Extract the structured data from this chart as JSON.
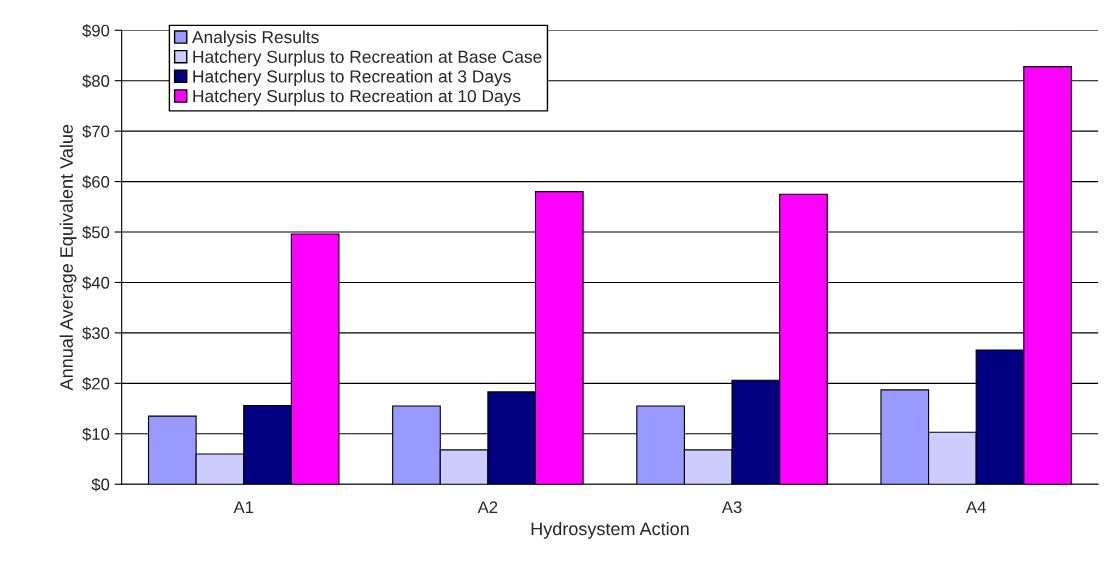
{
  "chart_data": {
    "type": "bar",
    "xlabel": "Hydrosystem Action",
    "ylabel": "Annual Average Equivalent Value",
    "categories": [
      "A1",
      "A2",
      "A3",
      "A4"
    ],
    "series": [
      {
        "name": "Analysis Results",
        "color": "#9999ff",
        "values": [
          13.5,
          15.5,
          15.5,
          18.7
        ]
      },
      {
        "name": "Hatchery Surplus to Recreation at Base Case",
        "color": "#ccccff",
        "values": [
          6,
          6.8,
          6.8,
          10.3
        ]
      },
      {
        "name": "Hatchery Surplus to Recreation at 3 Days",
        "color": "#000080",
        "values": [
          15.6,
          18.3,
          20.6,
          26.6
        ]
      },
      {
        "name": "Hatchery Surplus to Recreation at 10 Days",
        "color": "#ff00ff",
        "values": [
          49.6,
          58,
          57.5,
          82.8
        ]
      }
    ],
    "ylim": [
      0,
      90
    ],
    "yticks": [
      {
        "value": 0,
        "label": "$0"
      },
      {
        "value": 10,
        "label": "$10"
      },
      {
        "value": 20,
        "label": "$20"
      },
      {
        "value": 30,
        "label": "$30"
      },
      {
        "value": 40,
        "label": "$40"
      },
      {
        "value": 50,
        "label": "$50"
      },
      {
        "value": 60,
        "label": "$60"
      },
      {
        "value": 70,
        "label": "$70"
      },
      {
        "value": 80,
        "label": "$80"
      },
      {
        "value": 90,
        "label": "$90"
      }
    ],
    "grid": "y",
    "legend": "top left"
  }
}
